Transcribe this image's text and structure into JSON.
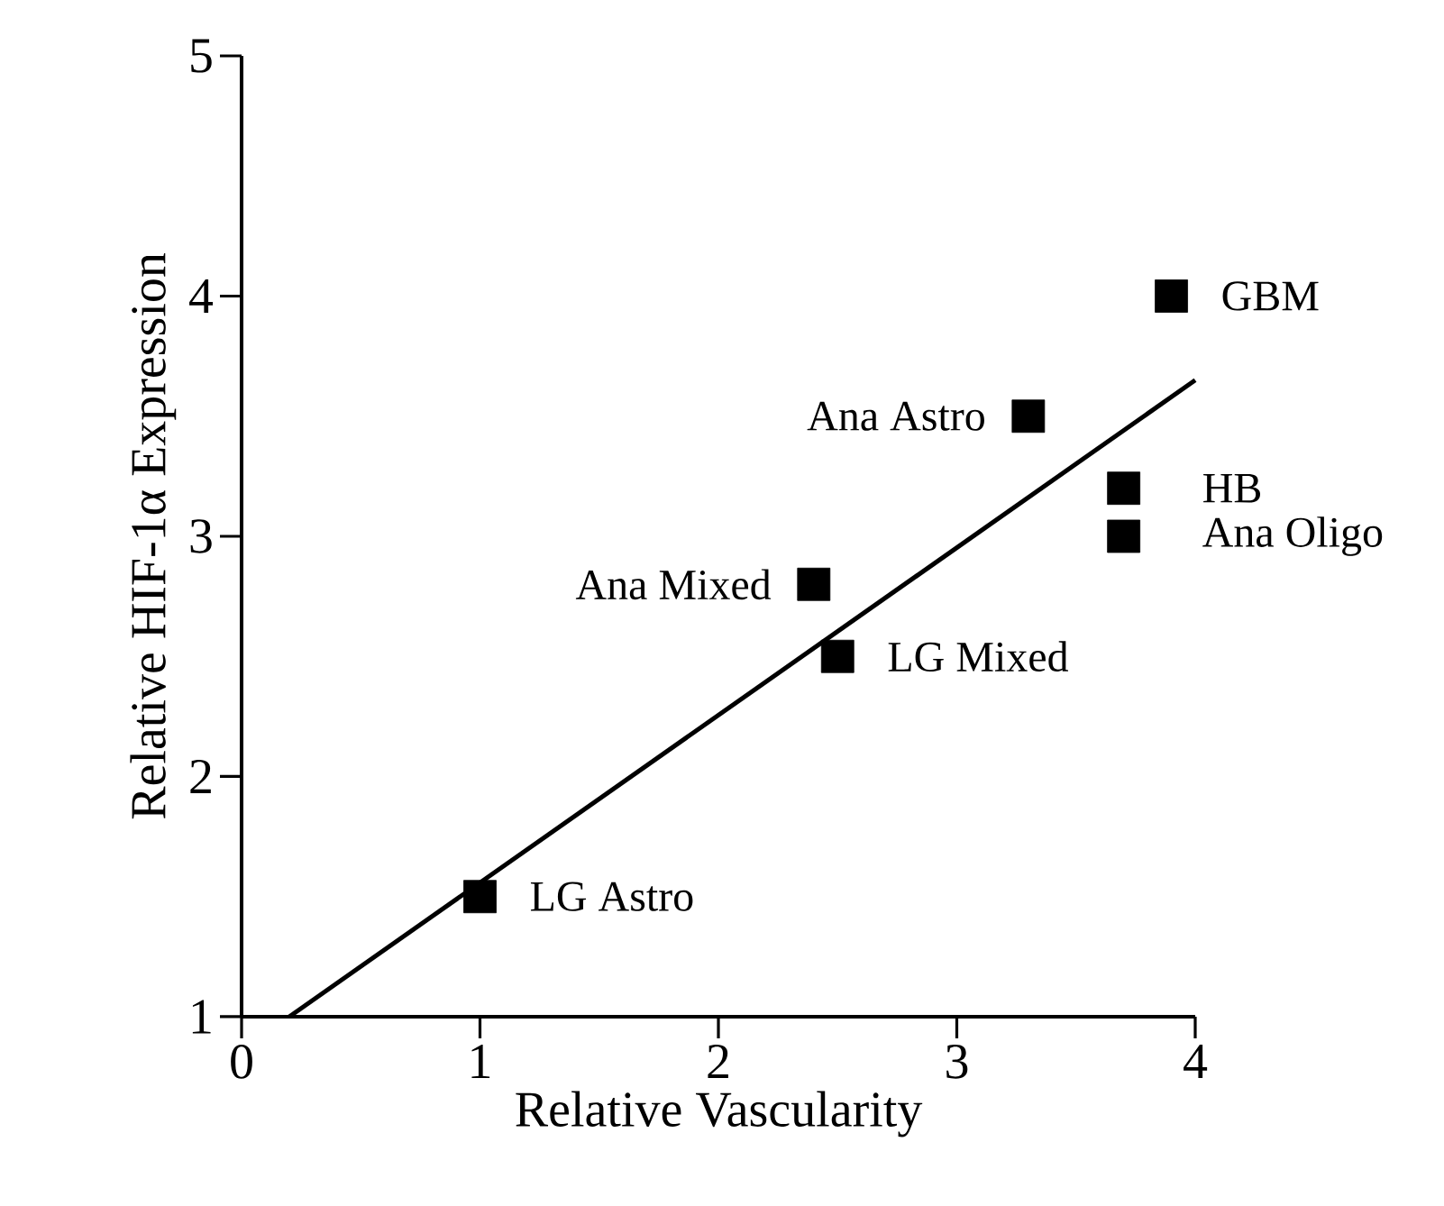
{
  "chart_data": {
    "type": "scatter",
    "xlabel": "Relative Vascularity",
    "ylabel": "Relative HIF-1α Expression",
    "xlim": [
      0,
      4
    ],
    "ylim": [
      1,
      5
    ],
    "xticks": [
      0,
      1,
      2,
      3,
      4
    ],
    "yticks": [
      1,
      2,
      3,
      4,
      5
    ],
    "grid": false,
    "series": [
      {
        "marker": "square",
        "color": "#000000",
        "x": [
          1.0,
          2.5,
          2.4,
          3.3,
          3.7,
          3.7,
          3.9
        ],
        "values": [
          1.5,
          2.5,
          2.8,
          3.5,
          3.2,
          3.0,
          4.0
        ]
      },
      {
        "type": "line",
        "color": "#000000",
        "x": [
          0.2,
          4.0
        ],
        "values": [
          1.0,
          3.65
        ]
      }
    ],
    "annotations": [
      {
        "text": "LG Astro",
        "x": 1.0,
        "y": 1.5
      },
      {
        "text": "LG Mixed",
        "x": 2.5,
        "y": 2.5
      },
      {
        "text": "Ana Mixed",
        "x": 2.4,
        "y": 2.8
      },
      {
        "text": "Ana Astro",
        "x": 3.3,
        "y": 3.5
      },
      {
        "text": "HB",
        "x": 3.7,
        "y": 3.2
      },
      {
        "text": "Ana Oligo",
        "x": 3.7,
        "y": 3.0
      },
      {
        "text": "GBM",
        "x": 3.9,
        "y": 4.0
      }
    ]
  }
}
